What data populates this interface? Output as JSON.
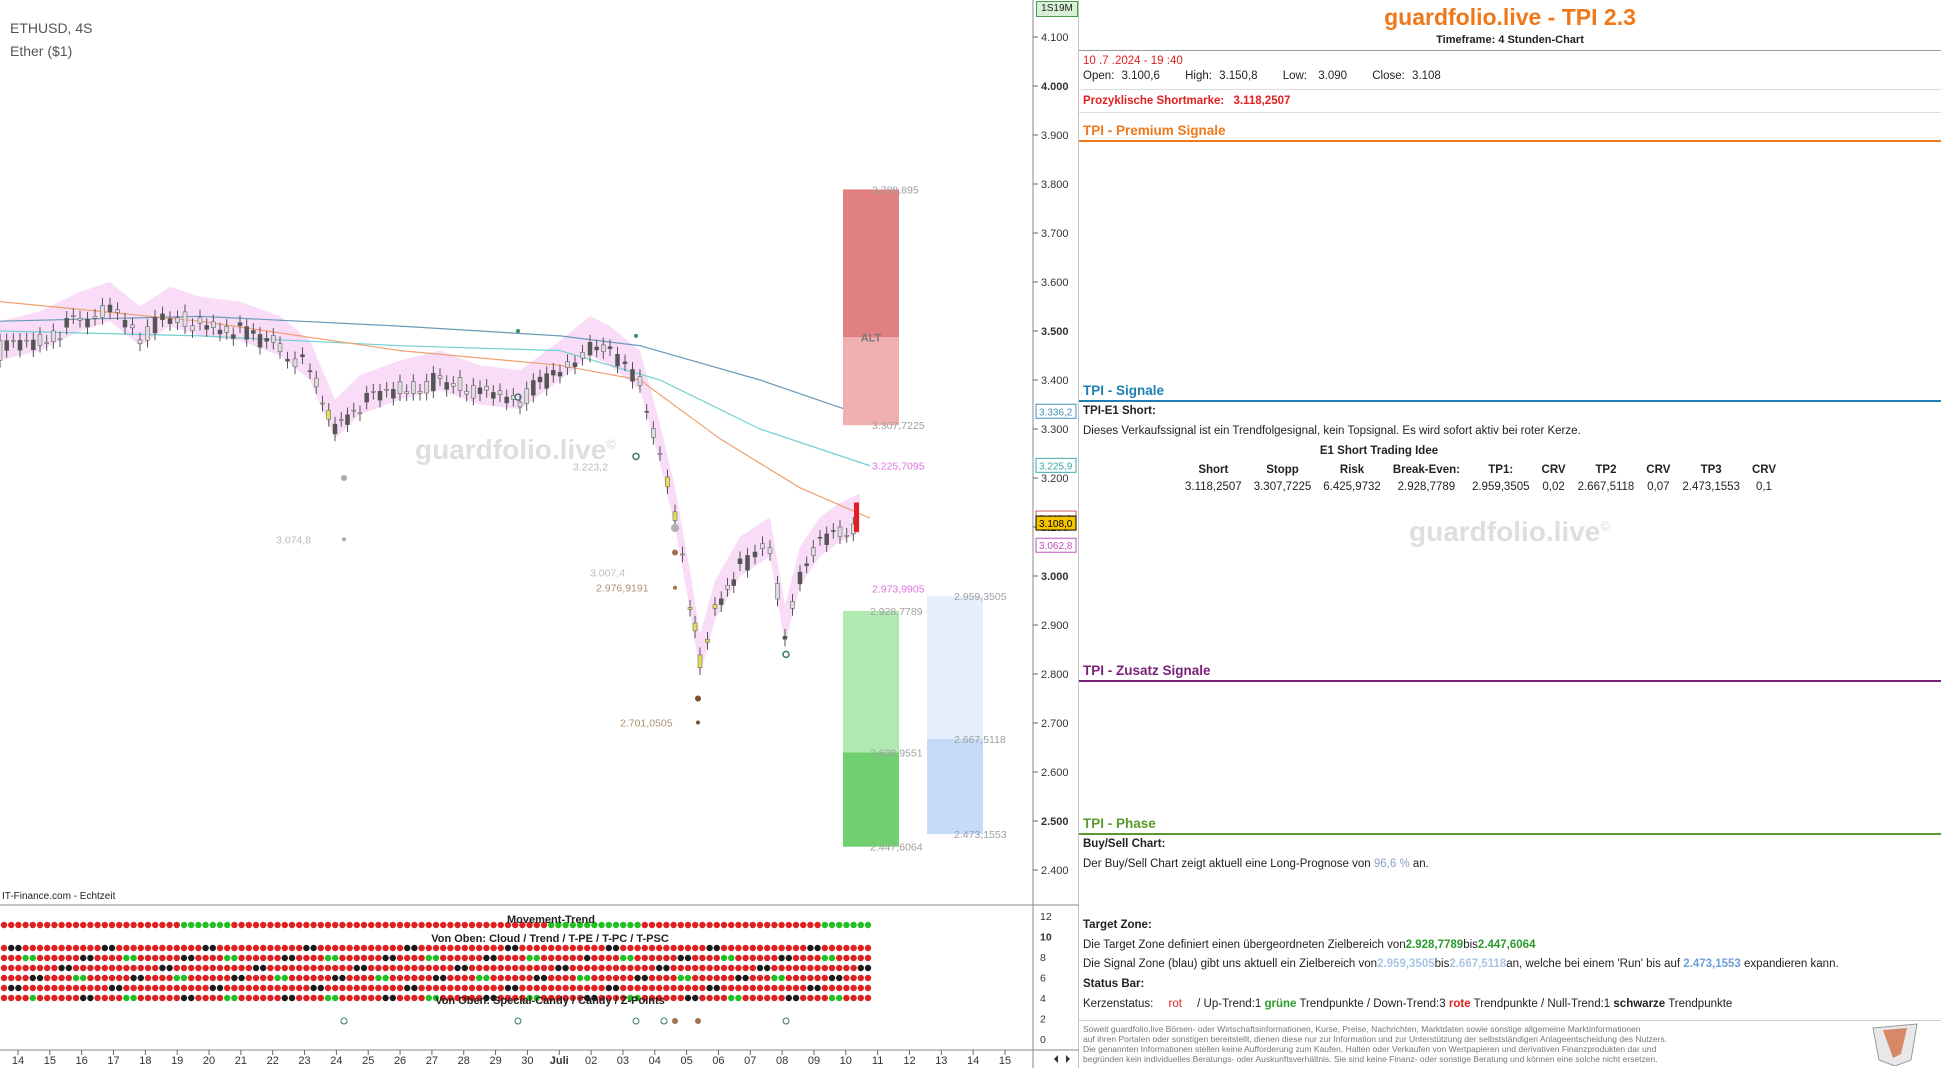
{
  "chart": {
    "symbol": "ETHUSD, 4S",
    "instrument": "Ether ($1)",
    "source": "IT-Finance.com - Echtzeit",
    "zoom_badge": "1S19M",
    "watermark": "guardfolio.live",
    "watermark_mark": "©",
    "price_axis": [
      "4.100",
      "4.000",
      "3.900",
      "3.800",
      "3.700",
      "3.600",
      "3.500",
      "3.400",
      "3.300",
      "3.200",
      "3.100",
      "3.000",
      "2.900",
      "2.800",
      "2.700",
      "2.600",
      "2.500",
      "2.400"
    ],
    "price_tags": [
      {
        "text": "3.336,2",
        "color": "#4a90b8",
        "bg": "#ffffff"
      },
      {
        "text": "3.225,9",
        "color": "#3aa8a8",
        "bg": "#ffffff"
      },
      {
        "text": "3.118,3",
        "color": "#d06060",
        "bg": "#ffffff"
      },
      {
        "text": "3.108,0",
        "color": "#000000",
        "bg": "#f6c400"
      },
      {
        "text": "3.062,8",
        "color": "#c050c0",
        "bg": "#ffffff"
      }
    ],
    "zones": {
      "red_top": "3.788,895",
      "red_label": "ALT",
      "red_bottom": "3.307,7225",
      "magenta_line": "3.225,7095",
      "magenta_low": "2.973,9905",
      "green_top": "2.928,7789",
      "green_mid": "2.639,9551",
      "green_bottom": "2.447,6064",
      "blue_top": "2.959,3505",
      "blue_mid": "2.667,5118",
      "blue_bottom": "2.473,1553"
    },
    "annotations": [
      "3.223,2",
      "3.074,8",
      "3.007,4",
      "2.976,9191",
      "2.701,0505"
    ],
    "date_axis": [
      "14",
      "15",
      "16",
      "17",
      "18",
      "19",
      "20",
      "21",
      "22",
      "23",
      "24",
      "25",
      "26",
      "27",
      "28",
      "29",
      "30",
      "Juli",
      "02",
      "03",
      "04",
      "05",
      "06",
      "07",
      "08",
      "09",
      "10",
      "11",
      "12",
      "13",
      "14",
      "15"
    ],
    "indicator": {
      "title1": "Movement-Trend",
      "title2": "Von Oben: Cloud / Trend / T-PE / T-PC / T-PSC",
      "title3": "Von Oben: Special-Candy / Candy / Z-Points",
      "axis": [
        "12",
        "10",
        "8",
        "6",
        "4",
        "2",
        "0"
      ]
    }
  },
  "panel": {
    "title": "guardfolio.live - TPI 2.3",
    "timeframe": "Timeframe: 4 Stunden-Chart",
    "datetime": "10 .7 .2024 - 19 :40",
    "ohlc": {
      "open_label": "Open:",
      "open": "3.100,6",
      "high_label": "High:",
      "high": "3.150,8",
      "low_label": "Low:",
      "low": "3.090",
      "close_label": "Close:",
      "close": "3.108"
    },
    "shortmark_label": "Prozyklische Shortmarke:",
    "shortmark_value": "3.118,2507",
    "sections": {
      "premium": "TPI - Premium Signale",
      "signale": "TPI - Signale",
      "zusatz": "TPI - Zusatz Signale",
      "phase": "TPI - Phase"
    },
    "signal": {
      "name": "TPI-E1 Short:",
      "desc": "Dieses Verkaufssignal ist ein Trendfolgesignal, kein Topsignal. Es wird sofort aktiv bei roter Kerze.",
      "table_title": "E1 Short Trading Idee",
      "headers": [
        "Short",
        "Stopp",
        "Risk",
        "Break-Even:",
        "TP1:",
        "CRV",
        "TP2",
        "CRV",
        "TP3",
        "CRV"
      ],
      "values": [
        "3.118,2507",
        "3.307,7225",
        "6.425,9732",
        "2.928,7789",
        "2.959,3505",
        "0,02",
        "2.667,5118",
        "0,07",
        "2.473,1553",
        "0,1"
      ]
    },
    "watermark": "guardfolio.live",
    "watermark_mark": "©",
    "phase": {
      "buysell_title": "Buy/Sell Chart:",
      "buysell_text_a": "Der Buy/Sell Chart zeigt aktuell eine Long-Prognose von",
      "buysell_pct": "96,6 %",
      "buysell_text_b": "an.",
      "target_title": "Target Zone:",
      "target_text_a": "Die Target Zone definiert einen übergeordneten Zielbereich von",
      "target_from": "2.928,7789",
      "target_bis": "bis",
      "target_to": "2.447,6064",
      "signalzone_text_a": "Die Signal Zone (blau) gibt uns aktuell ein Zielbereich von",
      "signalzone_from": "2.959,3505",
      "signalzone_bis": "bis",
      "signalzone_to": "2.667,5118",
      "signalzone_text_b": "an, welche bei einem 'Run' bis auf",
      "signalzone_run": "2.473,1553",
      "signalzone_text_c": "expandieren kann.",
      "status_title": "Status Bar:",
      "kerzen_label": "Kerzenstatus:",
      "kerzen_value": "rot",
      "up_label": "/ Up-Trend:",
      "up_count": "1",
      "up_word": "grüne",
      "up_suffix": "Trendpunkte",
      "down_label": "/ Down-Trend:",
      "down_count": "3",
      "down_word": "rote",
      "down_suffix": "Trendpunkte",
      "null_label": "/ Null-Trend:",
      "null_count": "1",
      "null_word": "schwarze",
      "null_suffix": "Trendpunkte"
    },
    "disclaimer": [
      "Soweit guardfolio.live Börsen- oder Wirtschaftsinformationen, Kurse, Preise, Nachrichten, Marktdaten sowie sonstige allgemeine Marktinformationen",
      "auf ihren Portalen oder sonstigen bereitstellt, dienen diese nur zur Information und zur Unterstützung der selbstständigen Anlageentscheidung des Nutzers.",
      "Die genannten Informationen stellen keine Aufforderung zum Kaufen, Halten oder Verkaufen von Wertpapieren und derivativen Finanzprodukten dar und",
      "begründen kein individuelles Beratungs- oder Auskunftsverhältnis. Sie sind keine Finanz- oder sonstige Beratung und können eine solche nicht ersetzen."
    ],
    "colors": {
      "premium": "#f07818",
      "signale": "#1f7fb0",
      "zusatz": "#7a1f7a",
      "phase": "#5a9a2a"
    }
  }
}
